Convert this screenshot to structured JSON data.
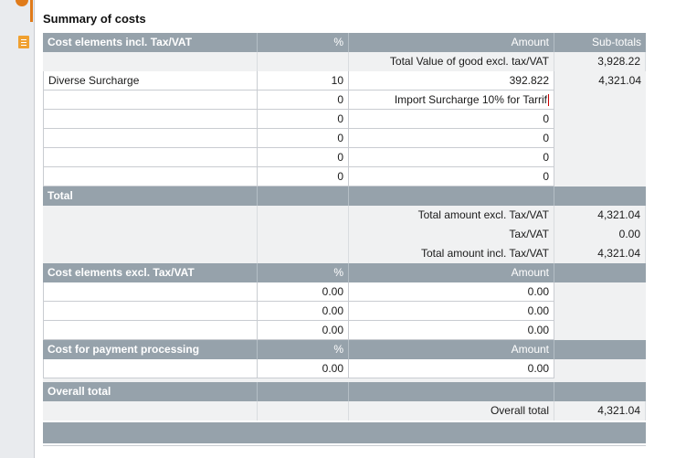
{
  "title": "Summary of costs",
  "header": {
    "col1": "Cost elements incl. Tax/VAT",
    "col2": "%",
    "col3": "Amount",
    "col4": "Sub-totals"
  },
  "goods_row": {
    "label": "Total Value of good excl. tax/VAT",
    "subtotal": "3,928.22"
  },
  "incl_rows": [
    {
      "name": "Diverse Surcharge",
      "pct": "10",
      "amount": "392.822",
      "subtotal": "4,321.04"
    },
    {
      "name": "",
      "pct": "0",
      "amount": "Import Surcharge 10%  for Tarrif",
      "subtotal": ""
    },
    {
      "name": "",
      "pct": "0",
      "amount": "0",
      "subtotal": ""
    },
    {
      "name": "",
      "pct": "0",
      "amount": "0",
      "subtotal": ""
    },
    {
      "name": "",
      "pct": "0",
      "amount": "0",
      "subtotal": ""
    },
    {
      "name": "",
      "pct": "0",
      "amount": "0",
      "subtotal": ""
    }
  ],
  "total": {
    "label": "Total",
    "excl_label": "Total amount excl. Tax/VAT",
    "excl_value": "4,321.04",
    "tax_label": "Tax/VAT",
    "tax_value": "0.00",
    "incl_label": "Total amount incl. Tax/VAT",
    "incl_value": "4,321.04"
  },
  "excl_section": {
    "col1": "Cost elements excl. Tax/VAT",
    "col2": "%",
    "col3": "Amount",
    "rows": [
      {
        "pct": "0.00",
        "amount": "0.00"
      },
      {
        "pct": "0.00",
        "amount": "0.00"
      },
      {
        "pct": "0.00",
        "amount": "0.00"
      }
    ]
  },
  "payment_section": {
    "col1": "Cost for payment processing",
    "col2": "%",
    "col3": "Amount",
    "rows": [
      {
        "pct": "0.00",
        "amount": "0.00"
      }
    ]
  },
  "overall": {
    "label": "Overall total",
    "row_label": "Overall total",
    "value": "4,321.04"
  },
  "icons": {
    "top": "database-icon",
    "doc": "document-icon"
  },
  "colors": {
    "header": "#96a2ab",
    "band": "#f0f1f2",
    "accent": "#e07b1a"
  }
}
